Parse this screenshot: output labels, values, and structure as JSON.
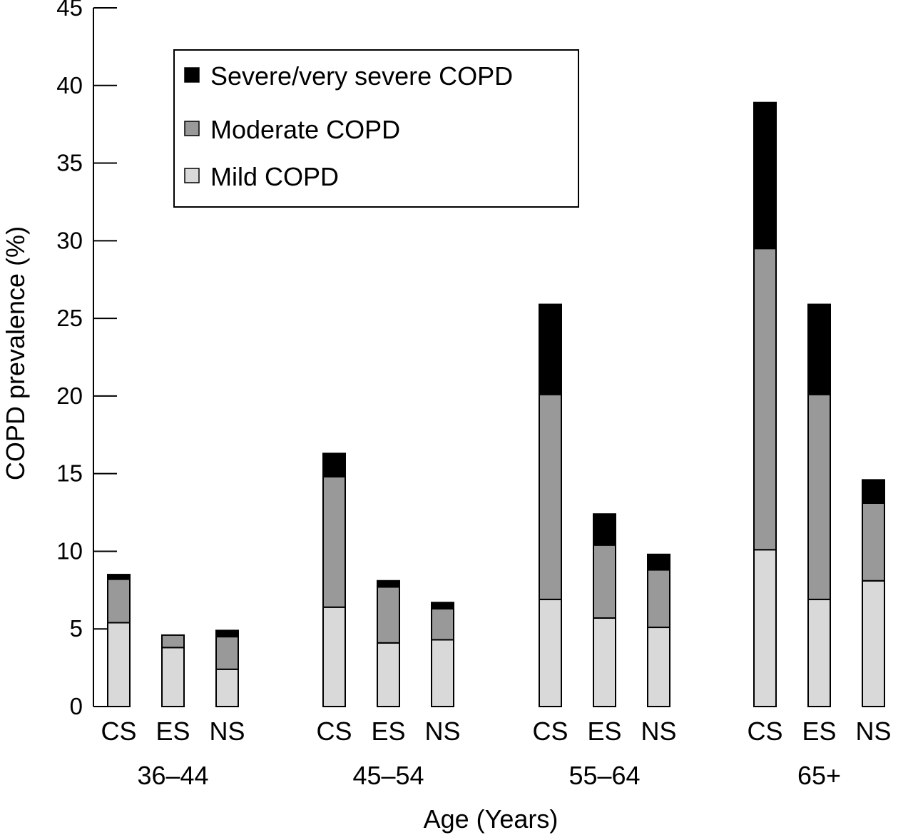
{
  "chart_data": {
    "type": "bar",
    "stacked": true,
    "title": "",
    "xlabel": "Age (Years)",
    "ylabel": "COPD prevalence (%)",
    "ylim": [
      0,
      45
    ],
    "yticks": [
      0,
      5,
      10,
      15,
      20,
      25,
      30,
      35,
      40,
      45
    ],
    "grid": false,
    "legend_position": "top-left",
    "groups": [
      {
        "label": "36–44",
        "categories": [
          "CS",
          "ES",
          "NS"
        ]
      },
      {
        "label": "45–54",
        "categories": [
          "CS",
          "ES",
          "NS"
        ]
      },
      {
        "label": "55–64",
        "categories": [
          "CS",
          "ES",
          "NS"
        ]
      },
      {
        "label": "65+",
        "categories": [
          "CS",
          "ES",
          "NS"
        ]
      }
    ],
    "series": [
      {
        "name": "Mild COPD",
        "color": "#d9d9d9",
        "values": [
          5.4,
          3.8,
          2.4,
          6.4,
          4.1,
          4.3,
          6.9,
          5.7,
          5.1,
          10.1,
          6.9,
          8.1
        ]
      },
      {
        "name": "Moderate COPD",
        "color": "#999999",
        "values": [
          2.8,
          0.8,
          2.1,
          8.4,
          3.6,
          2.0,
          13.2,
          4.7,
          3.7,
          19.4,
          13.2,
          5.0
        ]
      },
      {
        "name": "Severe/very severe COPD",
        "color": "#000000",
        "values": [
          0.3,
          0.0,
          0.4,
          1.5,
          0.4,
          0.4,
          5.8,
          2.0,
          1.0,
          9.4,
          5.8,
          1.5
        ]
      }
    ],
    "legend_order": [
      "Severe/very severe COPD",
      "Moderate COPD",
      "Mild COPD"
    ]
  }
}
